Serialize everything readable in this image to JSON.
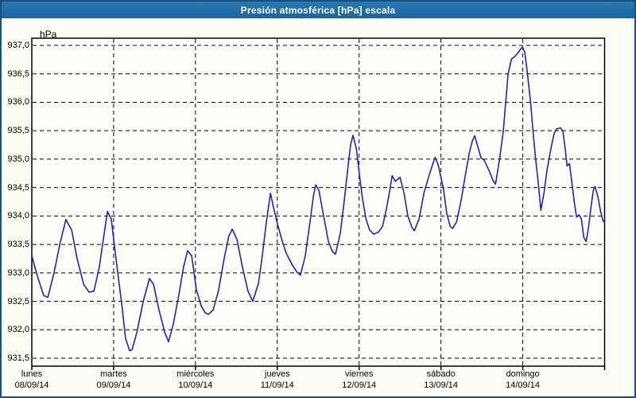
{
  "window": {
    "title": "Presión atmosférica [hPa] escala"
  },
  "colors": {
    "titlebar": "#1f6ca6",
    "window_border": "#14527f",
    "background": "#fcfdf4",
    "plot_background": "#fffffa",
    "gridline": "#000000",
    "series_line": "#2121c4"
  },
  "chart_data": {
    "type": "line",
    "title": "Presión atmosférica [hPa] escala",
    "ylabel": "hPa",
    "xlabel": "",
    "ylim": [
      931.36,
      937.13
    ],
    "grid": "dashed black horizontal lines every 0.5 hPa and dashed vertical lines at each day boundary",
    "legend_position": "none",
    "x_unit": "hours since Monday 08/09/14 00:00",
    "yticks": [
      {
        "value": 937.0,
        "label": "937,0"
      },
      {
        "value": 936.5,
        "label": "936,5"
      },
      {
        "value": 936.0,
        "label": "936,0"
      },
      {
        "value": 935.5,
        "label": "935,5"
      },
      {
        "value": 935.0,
        "label": "935,0"
      },
      {
        "value": 934.5,
        "label": "934,5"
      },
      {
        "value": 934.0,
        "label": "934,0"
      },
      {
        "value": 933.5,
        "label": "933,5"
      },
      {
        "value": 933.0,
        "label": "933,0"
      },
      {
        "value": 932.5,
        "label": "932,5"
      },
      {
        "value": 932.0,
        "label": "932,0"
      },
      {
        "value": 931.5,
        "label": "931,5"
      }
    ],
    "categories": [
      {
        "day": "lunes",
        "date": "08/09/14",
        "hour": 0
      },
      {
        "day": "martes",
        "date": "09/09/14",
        "hour": 24
      },
      {
        "day": "miércoles",
        "date": "10/09/14",
        "hour": 48
      },
      {
        "day": "jueves",
        "date": "11/09/14",
        "hour": 72
      },
      {
        "day": "viernes",
        "date": "12/09/14",
        "hour": 96
      },
      {
        "day": "sábado",
        "date": "13/09/14",
        "hour": 120
      },
      {
        "day": "domingo",
        "date": "14/09/14",
        "hour": 144
      }
    ],
    "series": [
      {
        "name": "Presión atmosférica",
        "color": "#2121c4",
        "points": [
          [
            0,
            933.3
          ],
          [
            1.6,
            932.95
          ],
          [
            3.5,
            932.6
          ],
          [
            4.7,
            932.57
          ],
          [
            6.5,
            933.0
          ],
          [
            8.4,
            933.55
          ],
          [
            10,
            933.94
          ],
          [
            11.7,
            933.75
          ],
          [
            13.3,
            933.25
          ],
          [
            15.2,
            932.8
          ],
          [
            16.8,
            932.66
          ],
          [
            18.2,
            932.68
          ],
          [
            19.8,
            933.1
          ],
          [
            21,
            933.6
          ],
          [
            22.2,
            934.08
          ],
          [
            23.3,
            933.95
          ],
          [
            24,
            933.6
          ],
          [
            25.2,
            933.0
          ],
          [
            26.4,
            932.45
          ],
          [
            27.5,
            931.85
          ],
          [
            28.7,
            931.63
          ],
          [
            29.4,
            931.65
          ],
          [
            30.8,
            931.95
          ],
          [
            32.7,
            932.5
          ],
          [
            34.5,
            932.9
          ],
          [
            35.7,
            932.8
          ],
          [
            37.3,
            932.35
          ],
          [
            39,
            931.95
          ],
          [
            40.1,
            931.79
          ],
          [
            41.5,
            932.1
          ],
          [
            43.1,
            932.6
          ],
          [
            44.5,
            933.1
          ],
          [
            45.7,
            933.39
          ],
          [
            46.9,
            933.3
          ],
          [
            48.3,
            932.7
          ],
          [
            49.7,
            932.42
          ],
          [
            50.8,
            932.3
          ],
          [
            51.8,
            932.27
          ],
          [
            53.2,
            932.35
          ],
          [
            54.8,
            932.7
          ],
          [
            56.4,
            933.25
          ],
          [
            57.8,
            933.65
          ],
          [
            58.8,
            933.77
          ],
          [
            60.2,
            933.58
          ],
          [
            61.8,
            933.1
          ],
          [
            63.4,
            932.68
          ],
          [
            64.8,
            932.5
          ],
          [
            66.5,
            932.82
          ],
          [
            67.6,
            933.3
          ],
          [
            68.8,
            933.9
          ],
          [
            70,
            934.4
          ],
          [
            71.1,
            934.1
          ],
          [
            72.1,
            933.85
          ],
          [
            73.5,
            933.55
          ],
          [
            74.6,
            933.35
          ],
          [
            76.3,
            933.15
          ],
          [
            77.7,
            933.02
          ],
          [
            78.8,
            932.96
          ],
          [
            80.2,
            933.3
          ],
          [
            81.6,
            933.9
          ],
          [
            82.6,
            934.35
          ],
          [
            83.3,
            934.55
          ],
          [
            84.2,
            934.45
          ],
          [
            85.6,
            934.0
          ],
          [
            87,
            933.55
          ],
          [
            88.2,
            933.37
          ],
          [
            89.1,
            933.33
          ],
          [
            90.5,
            933.7
          ],
          [
            91.7,
            934.3
          ],
          [
            92.8,
            934.9
          ],
          [
            93.5,
            935.25
          ],
          [
            94.2,
            935.42
          ],
          [
            95.2,
            935.18
          ],
          [
            96.1,
            934.72
          ],
          [
            97,
            934.3
          ],
          [
            98,
            933.95
          ],
          [
            99.1,
            933.75
          ],
          [
            100.3,
            933.68
          ],
          [
            101.7,
            933.72
          ],
          [
            102.9,
            933.82
          ],
          [
            104,
            934.12
          ],
          [
            105,
            934.45
          ],
          [
            105.7,
            934.71
          ],
          [
            106.6,
            934.61
          ],
          [
            108,
            934.68
          ],
          [
            109.2,
            934.4
          ],
          [
            110.3,
            934.0
          ],
          [
            111.5,
            933.8
          ],
          [
            112.2,
            933.74
          ],
          [
            113.6,
            933.95
          ],
          [
            115,
            934.4
          ],
          [
            116.6,
            934.73
          ],
          [
            117.8,
            934.95
          ],
          [
            118.3,
            935.03
          ],
          [
            119.2,
            934.9
          ],
          [
            120.1,
            934.65
          ],
          [
            120.8,
            934.45
          ],
          [
            121.7,
            934.05
          ],
          [
            122.7,
            933.82
          ],
          [
            123.4,
            933.78
          ],
          [
            124.6,
            933.9
          ],
          [
            126,
            934.3
          ],
          [
            127.1,
            934.7
          ],
          [
            128.3,
            935.1
          ],
          [
            129.2,
            935.32
          ],
          [
            129.9,
            935.41
          ],
          [
            130.9,
            935.2
          ],
          [
            131.8,
            935.02
          ],
          [
            132.7,
            934.98
          ],
          [
            134.1,
            934.8
          ],
          [
            135.3,
            934.62
          ],
          [
            136,
            934.56
          ],
          [
            137.2,
            935.0
          ],
          [
            138.3,
            935.5
          ],
          [
            139,
            936.0
          ],
          [
            139.7,
            936.5
          ],
          [
            140.7,
            936.76
          ],
          [
            141.6,
            936.8
          ],
          [
            142.5,
            936.86
          ],
          [
            143.2,
            936.92
          ],
          [
            143.9,
            936.97
          ],
          [
            144.6,
            936.88
          ],
          [
            145.3,
            936.55
          ],
          [
            146.3,
            936.0
          ],
          [
            147,
            935.5
          ],
          [
            147.7,
            935.05
          ],
          [
            148.6,
            934.55
          ],
          [
            149.3,
            934.1
          ],
          [
            150.2,
            934.4
          ],
          [
            151.1,
            934.8
          ],
          [
            152.3,
            935.2
          ],
          [
            153.2,
            935.45
          ],
          [
            153.9,
            935.53
          ],
          [
            155.1,
            935.55
          ],
          [
            155.8,
            935.48
          ],
          [
            156.5,
            935.15
          ],
          [
            157,
            934.88
          ],
          [
            157.7,
            934.92
          ],
          [
            158.4,
            934.6
          ],
          [
            159.1,
            934.25
          ],
          [
            159.8,
            933.98
          ],
          [
            160.5,
            934.02
          ],
          [
            161.2,
            933.95
          ],
          [
            161.9,
            933.62
          ],
          [
            162.6,
            933.55
          ],
          [
            163.3,
            933.8
          ],
          [
            164,
            934.15
          ],
          [
            164.7,
            934.45
          ],
          [
            165.2,
            934.52
          ],
          [
            166.1,
            934.32
          ],
          [
            166.8,
            934.08
          ],
          [
            167.5,
            933.92
          ],
          [
            168,
            933.88
          ]
        ]
      }
    ]
  }
}
